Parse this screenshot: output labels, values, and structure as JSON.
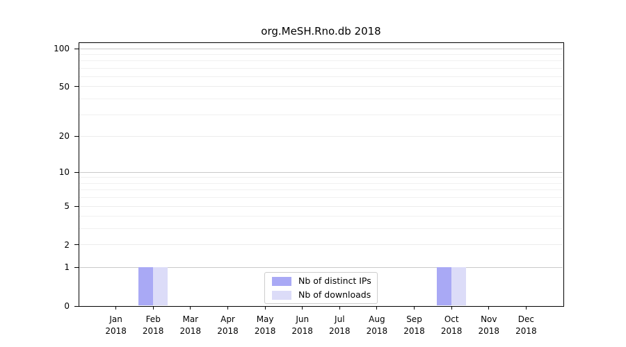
{
  "title": "org.MeSH.Rno.db 2018",
  "chart_data": {
    "type": "bar",
    "title": "org.MeSH.Rno.db 2018",
    "months": [
      "Jan",
      "Feb",
      "Mar",
      "Apr",
      "May",
      "Jun",
      "Jul",
      "Aug",
      "Sep",
      "Oct",
      "Nov",
      "Dec"
    ],
    "year_label": "2018",
    "series": [
      {
        "name": "Nb of distinct IPs",
        "color": "#a9a9f5",
        "values": [
          0,
          1,
          0,
          0,
          0,
          0,
          0,
          0,
          0,
          1,
          0,
          0
        ]
      },
      {
        "name": "Nb of downloads",
        "color": "#dcdcf8",
        "values": [
          0,
          1,
          0,
          0,
          0,
          0,
          0,
          0,
          0,
          1,
          0,
          0
        ]
      }
    ],
    "y_scale": "log10(1+v)",
    "y_ticks": [
      0,
      1,
      2,
      5,
      10,
      20,
      50,
      100
    ],
    "y_decade_gridlines": [
      1,
      10,
      100
    ],
    "y_minor_gridlines": [
      3,
      4,
      6,
      7,
      8,
      9,
      30,
      40,
      60,
      70,
      80,
      90
    ],
    "y_axis_top": 112,
    "ylim": [
      0,
      112
    ],
    "grid": true,
    "legend_position": "bottom-center"
  },
  "colors": {
    "axis": "#000000",
    "grid_major": "#c9c9c9",
    "grid_mid": "#ececec",
    "grid_minor": "#f0f0f0",
    "legend_border": "#cccccc",
    "background": "#ffffff"
  }
}
